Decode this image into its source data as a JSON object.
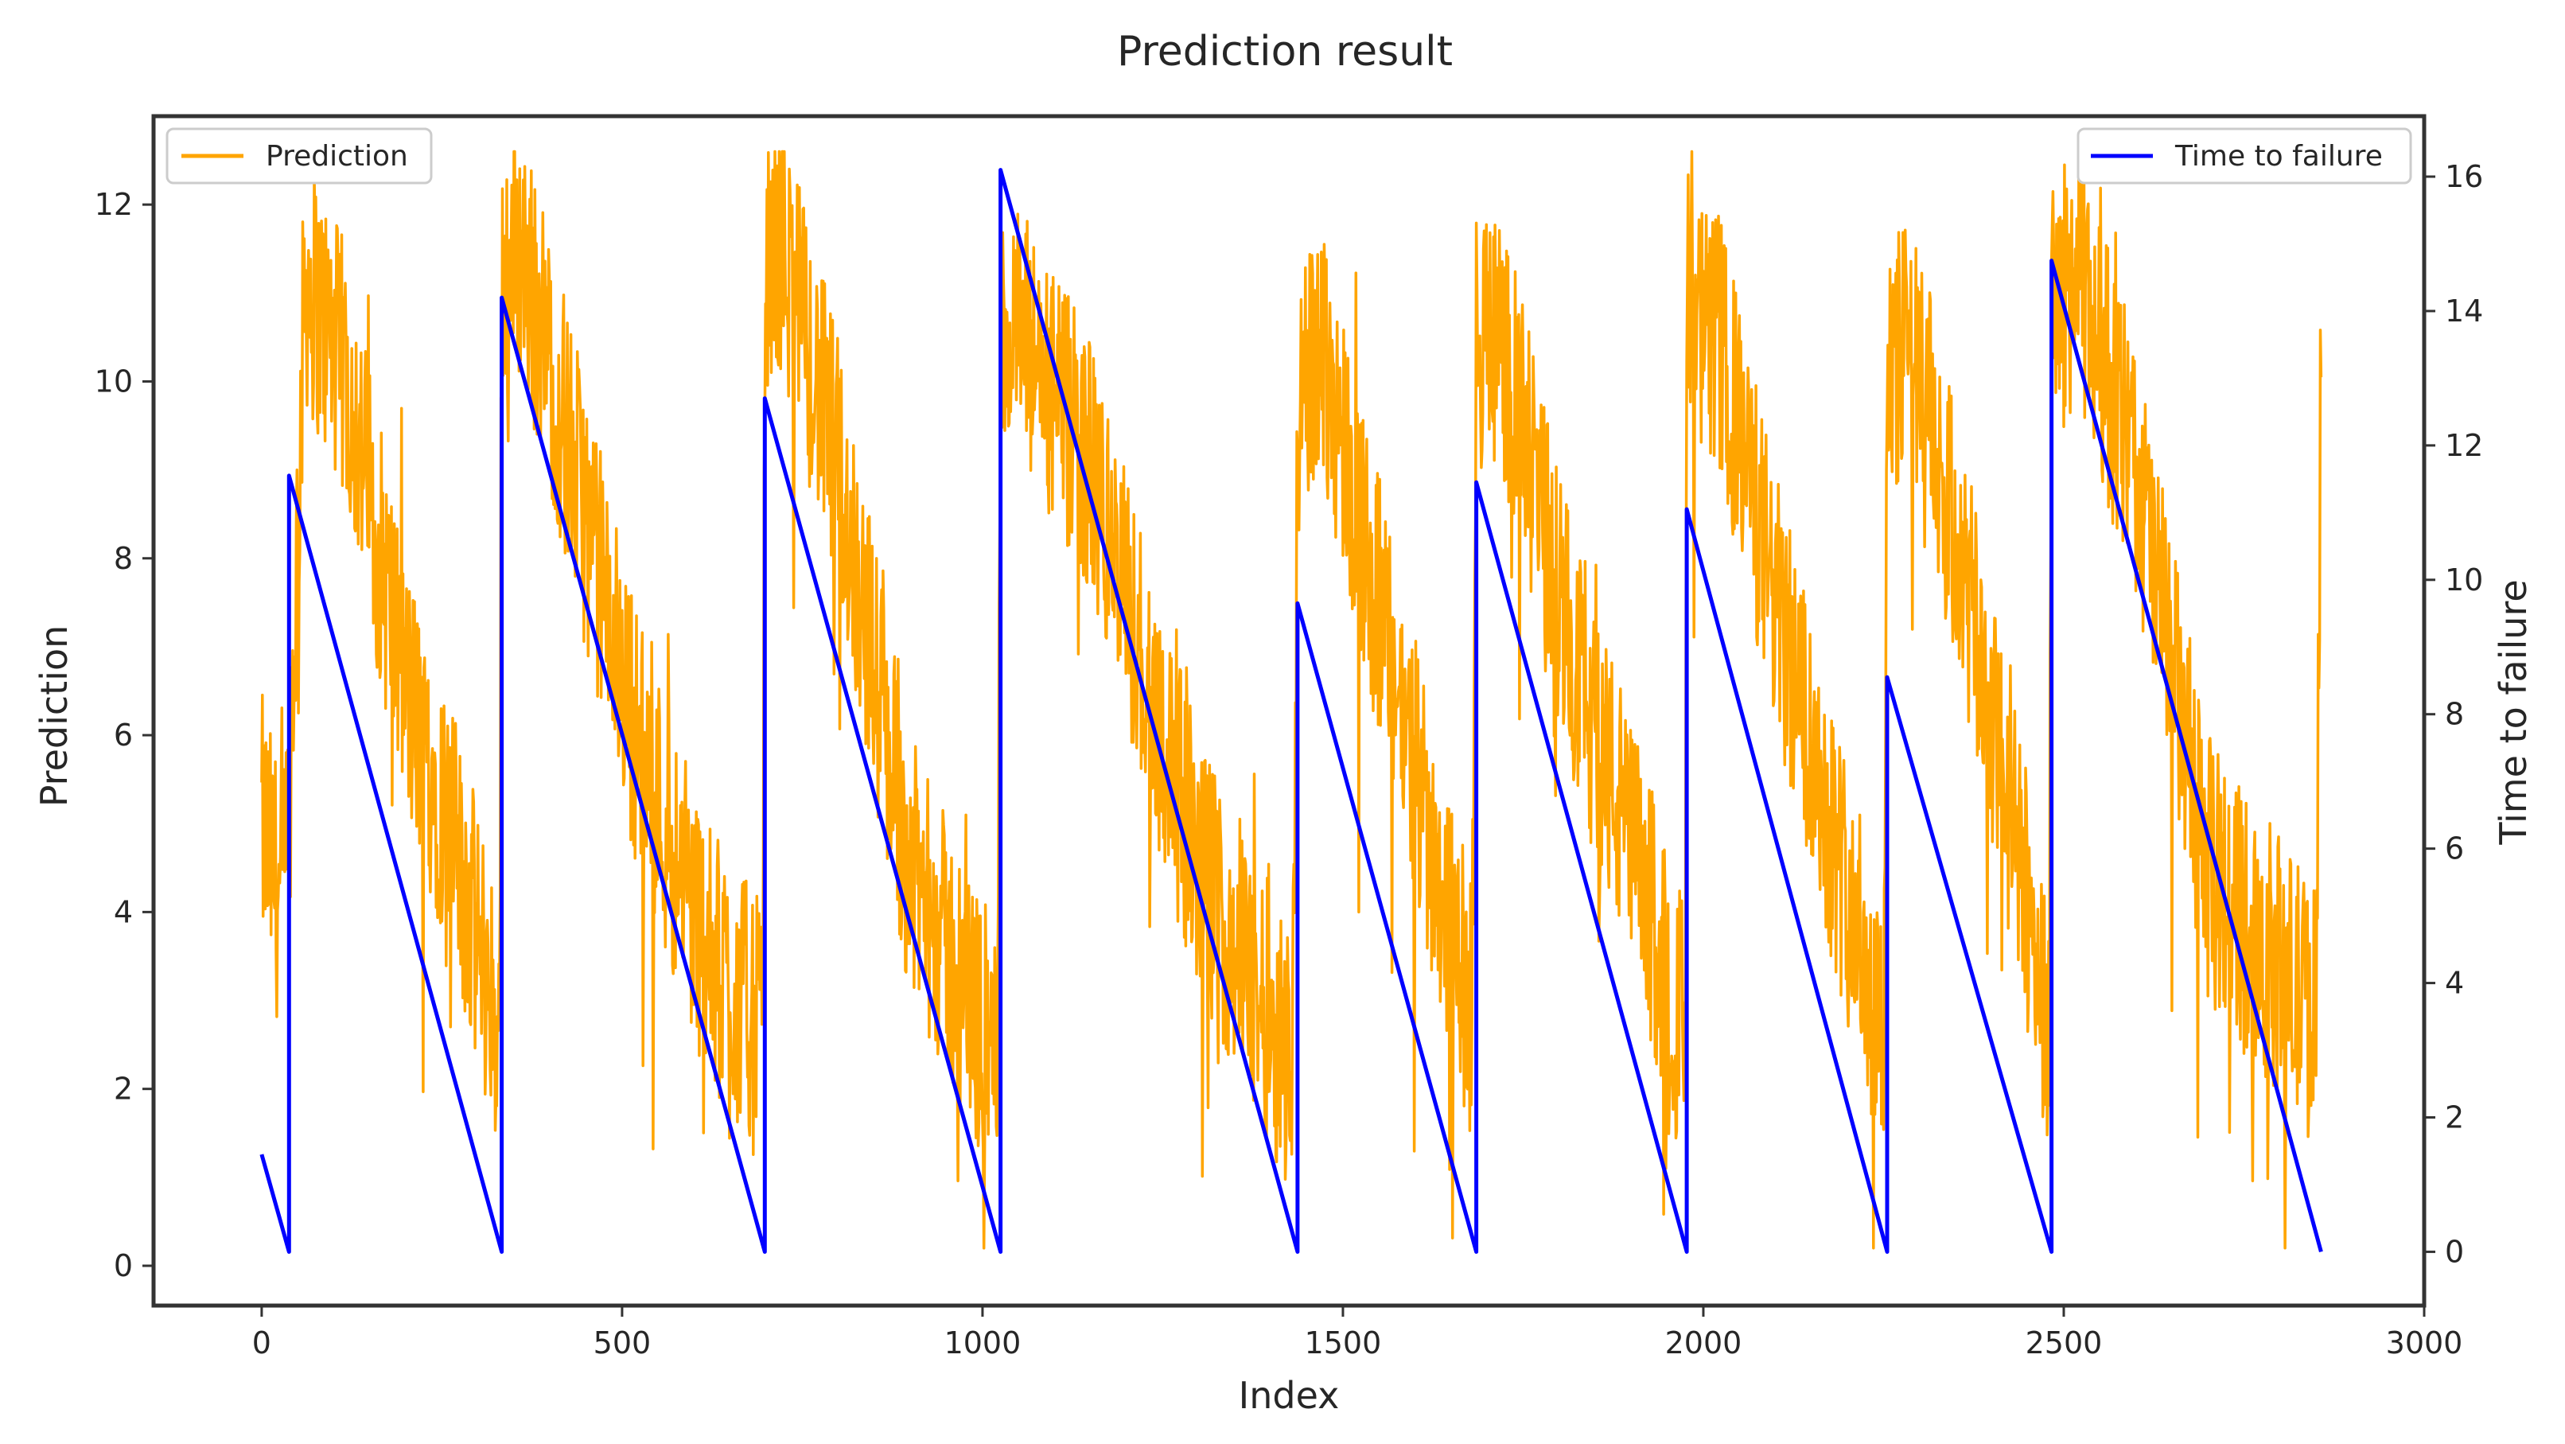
{
  "chart_data": {
    "type": "line",
    "title": "Prediction result",
    "xlabel": "Index",
    "ylabel": "Prediction",
    "y2label": "Time to failure",
    "xlim": [
      -150,
      3000
    ],
    "ylim": [
      -0.45,
      13.0
    ],
    "y2lim": [
      -0.8,
      16.9
    ],
    "xticks": [
      0,
      500,
      1000,
      1500,
      2000,
      2500,
      3000
    ],
    "yticks": [
      0,
      2,
      4,
      6,
      8,
      10,
      12
    ],
    "y2ticks": [
      0,
      2,
      4,
      6,
      8,
      10,
      12,
      14,
      16
    ],
    "legend_left": {
      "label": "Prediction",
      "placement": "upper-left"
    },
    "legend_right": {
      "label": "Time to failure",
      "placement": "upper-right"
    },
    "colors": {
      "prediction": "#FFA500",
      "time_to_failure": "#0000FF",
      "axes": "#333333",
      "text": "#262626"
    },
    "series": [
      {
        "name": "Time to failure",
        "axis": "right",
        "note": "sawtooth: [start_x, start_y, end_x, end_y] per cycle",
        "segments": [
          [
            0,
            1.45,
            38,
            0.0
          ],
          [
            38,
            11.55,
            333,
            0.0
          ],
          [
            333,
            14.2,
            698,
            0.0
          ],
          [
            698,
            12.7,
            1025,
            0.0
          ],
          [
            1025,
            16.1,
            1437,
            0.0
          ],
          [
            1437,
            9.65,
            1685,
            0.0
          ],
          [
            1685,
            11.45,
            1977,
            0.0
          ],
          [
            1977,
            11.05,
            2255,
            0.0
          ],
          [
            2255,
            8.55,
            2483,
            0.0
          ],
          [
            2483,
            14.75,
            2857,
            0.0
          ]
        ]
      },
      {
        "name": "Prediction",
        "axis": "left",
        "note": "noisy signal, approximate envelope points [x, y_center]; noise amplitude ~1.5",
        "trend": [
          [
            0,
            5.0
          ],
          [
            30,
            4.0
          ],
          [
            38,
            5.0
          ],
          [
            60,
            11.2
          ],
          [
            120,
            10.0
          ],
          [
            200,
            6.5
          ],
          [
            260,
            5.0
          ],
          [
            320,
            3.0
          ],
          [
            330,
            2.5
          ],
          [
            333,
            11.2
          ],
          [
            360,
            11.5
          ],
          [
            420,
            9.5
          ],
          [
            520,
            6.0
          ],
          [
            620,
            3.5
          ],
          [
            695,
            2.6
          ],
          [
            698,
            11.0
          ],
          [
            720,
            11.6
          ],
          [
            800,
            9.0
          ],
          [
            900,
            4.5
          ],
          [
            1020,
            2.3
          ],
          [
            1025,
            10.5
          ],
          [
            1050,
            10.5
          ],
          [
            1150,
            9.0
          ],
          [
            1300,
            4.5
          ],
          [
            1430,
            2.3
          ],
          [
            1437,
            9.5
          ],
          [
            1470,
            10.5
          ],
          [
            1560,
            7.0
          ],
          [
            1680,
            2.8
          ],
          [
            1685,
            10.5
          ],
          [
            1720,
            10.5
          ],
          [
            1800,
            7.5
          ],
          [
            1975,
            2.6
          ],
          [
            1977,
            10.5
          ],
          [
            2020,
            10.5
          ],
          [
            2100,
            7.5
          ],
          [
            2250,
            2.6
          ],
          [
            2255,
            10.0
          ],
          [
            2290,
            10.5
          ],
          [
            2380,
            7.0
          ],
          [
            2480,
            2.8
          ],
          [
            2483,
            10.8
          ],
          [
            2520,
            11.2
          ],
          [
            2600,
            9.0
          ],
          [
            2700,
            4.5
          ],
          [
            2850,
            2.8
          ],
          [
            2857,
            10.8
          ]
        ]
      }
    ]
  }
}
